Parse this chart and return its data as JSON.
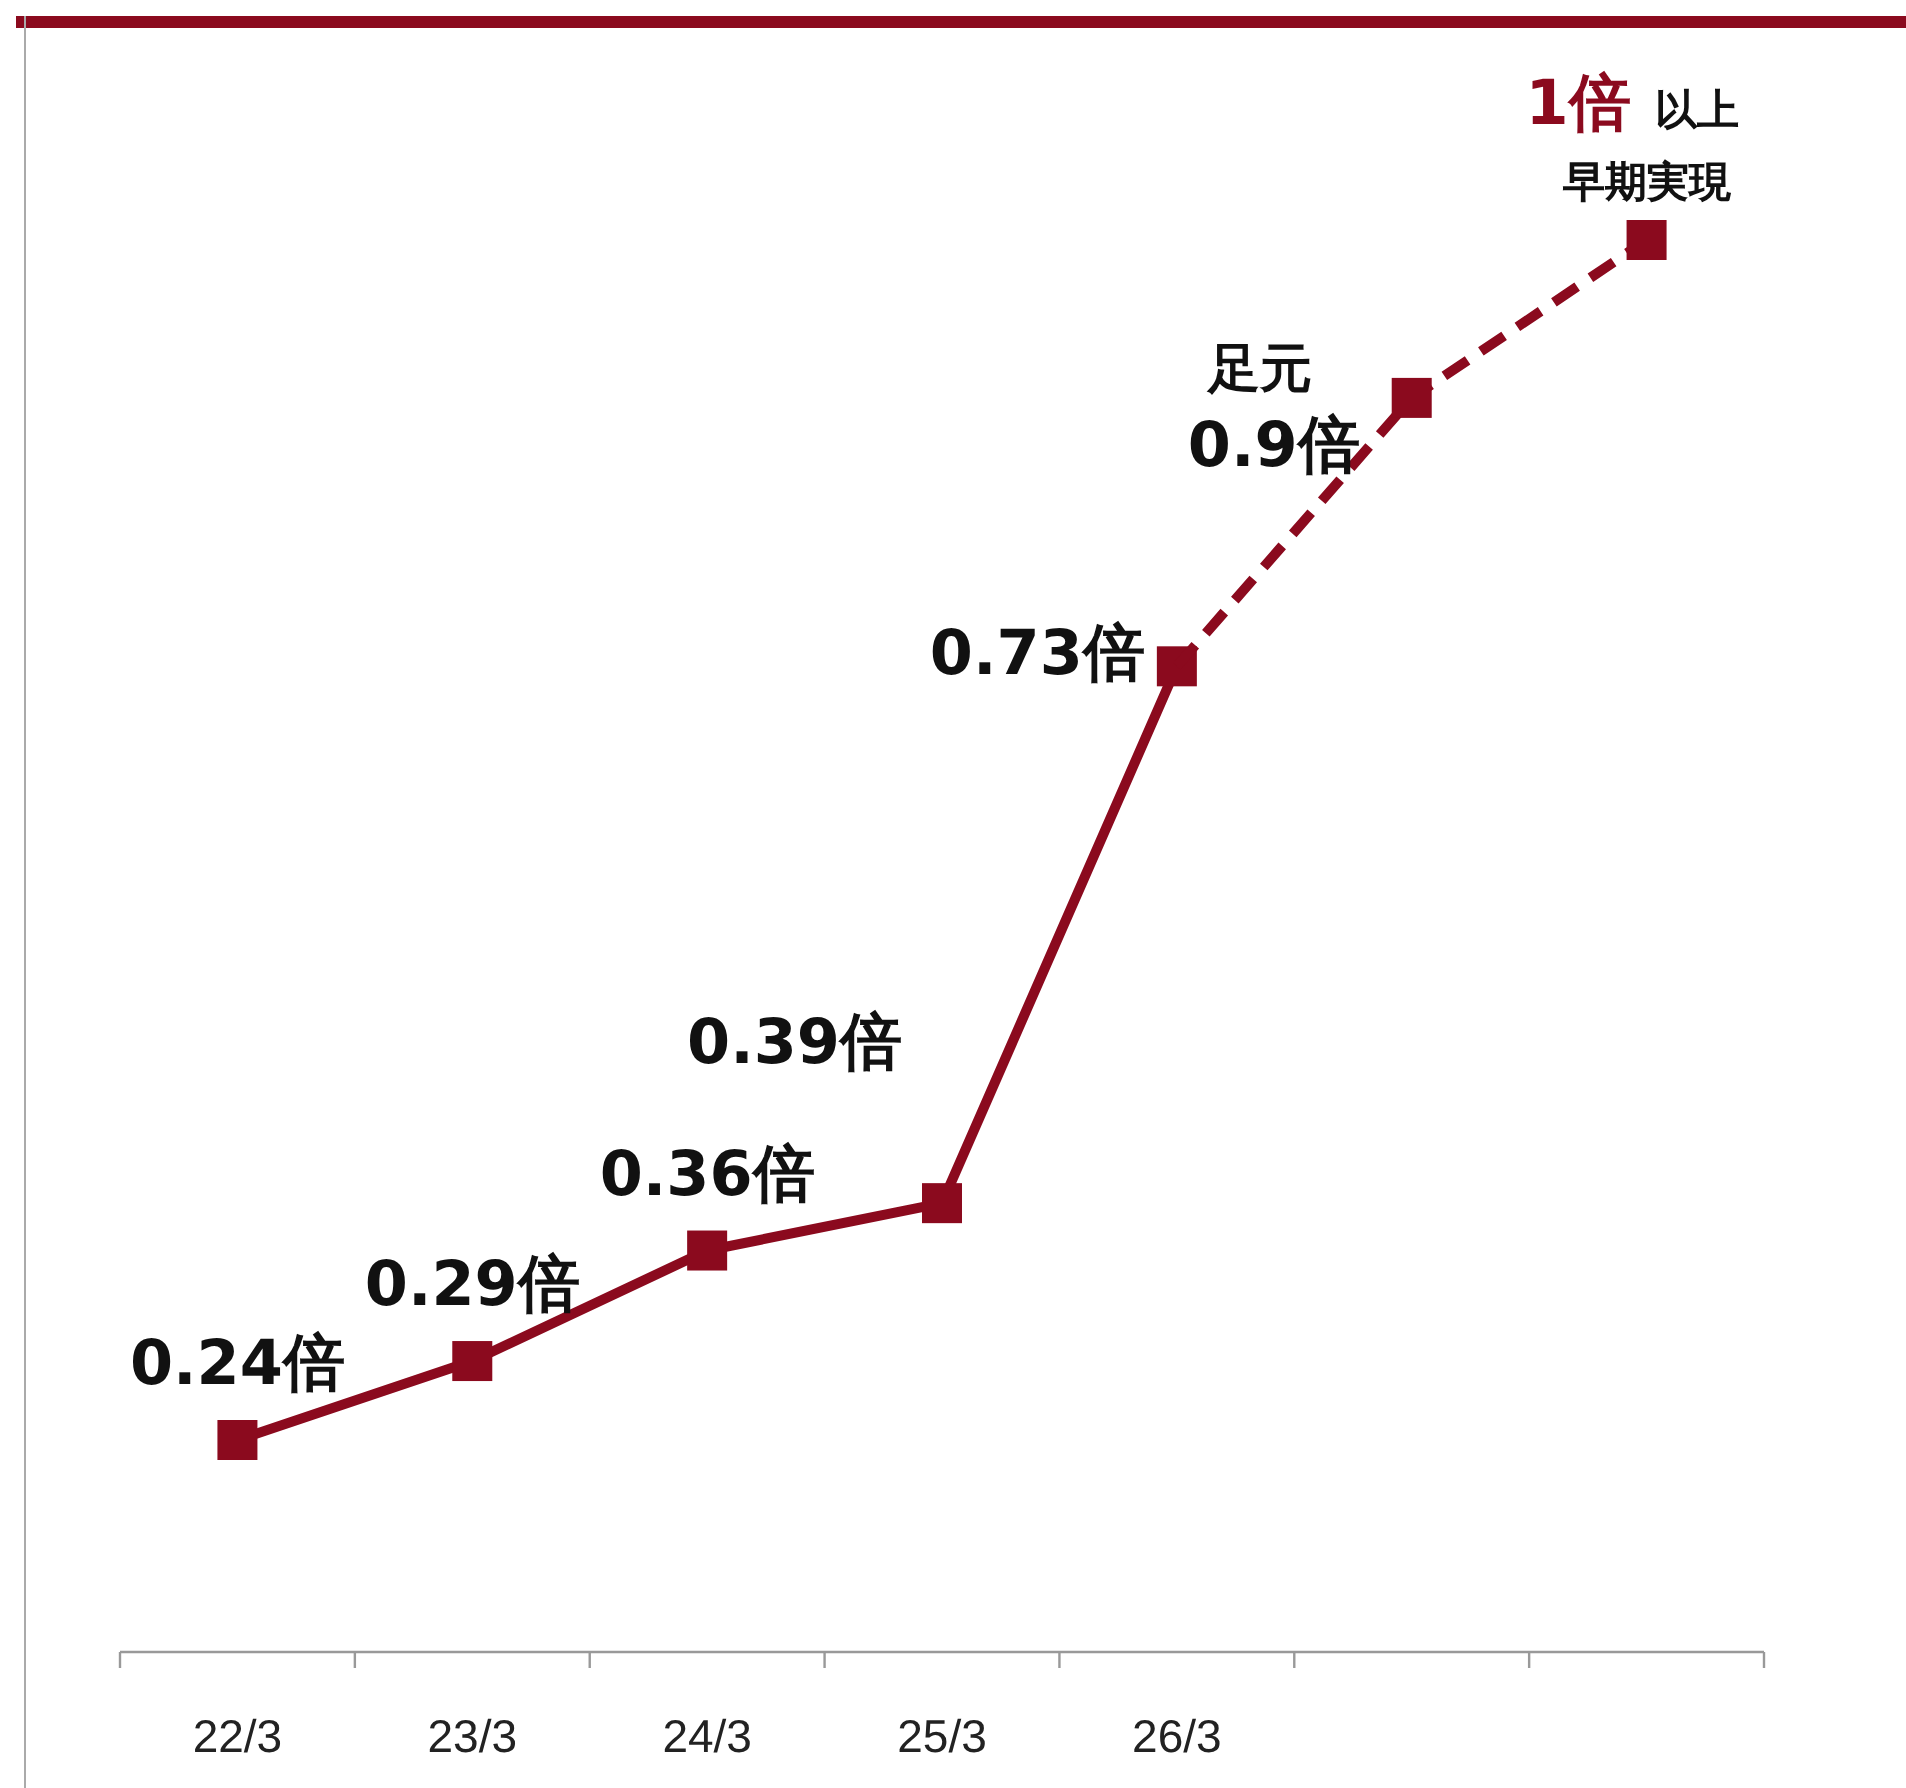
{
  "chart_data": {
    "type": "line",
    "categories": [
      "22/3",
      "23/3",
      "24/3",
      "25/3",
      "26/3",
      null,
      null
    ],
    "tick_labels": "x",
    "marker": "square",
    "series": [
      {
        "color": "#8b0a1e",
        "values": [
          0.24,
          0.29,
          0.36,
          0.39,
          0.73,
          null,
          null
        ],
        "line_style": "solid",
        "value_labels": [
          "0.24倍",
          "0.29倍",
          "0.36倍",
          "0.39倍",
          "0.73倍",
          null,
          null
        ]
      },
      {
        "color": "#8b0a1e",
        "values": [
          null,
          null,
          null,
          null,
          0.73,
          0.9,
          1
        ],
        "line_style": "dashed",
        "value_labels": [
          null,
          null,
          null,
          null,
          null,
          "0.9倍",
          "1倍"
        ]
      }
    ],
    "annotations": [
      "足元",
      "以上",
      "早期実現"
    ]
  }
}
